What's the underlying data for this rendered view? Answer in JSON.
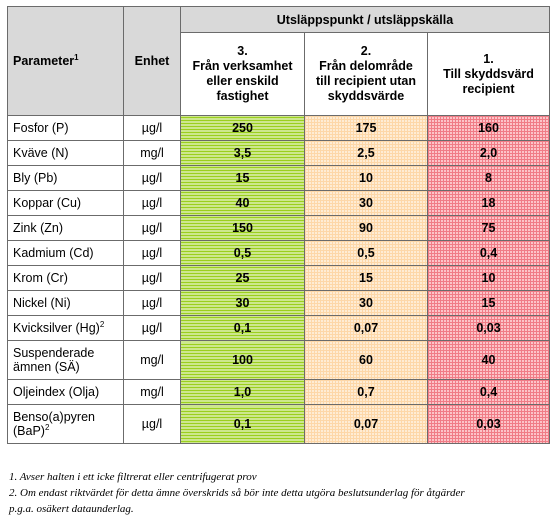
{
  "header": {
    "parameter": "Parameter",
    "parameter_sup": "1",
    "unit": "Enhet",
    "group": "Utsläppspunkt / utsläppskälla",
    "col3": "3.\nFrån verksamhet\neller enskild\nfastighet",
    "col2": "2.\nFrån delområde\ntill recipient utan\nskyddsvärde",
    "col1": "1.\nTill skyddsvärd\nrecipient"
  },
  "rows": [
    {
      "param": "Fosfor (P)",
      "sup": "",
      "unit": "µg/l",
      "v3": "250",
      "v2": "175",
      "v1": "160"
    },
    {
      "param": "Kväve (N)",
      "sup": "",
      "unit": "mg/l",
      "v3": "3,5",
      "v2": "2,5",
      "v1": "2,0"
    },
    {
      "param": "Bly (Pb)",
      "sup": "",
      "unit": "µg/l",
      "v3": "15",
      "v2": "10",
      "v1": "8"
    },
    {
      "param": "Koppar (Cu)",
      "sup": "",
      "unit": "µg/l",
      "v3": "40",
      "v2": "30",
      "v1": "18"
    },
    {
      "param": "Zink (Zn)",
      "sup": "",
      "unit": "µg/l",
      "v3": "150",
      "v2": "90",
      "v1": "75"
    },
    {
      "param": "Kadmium (Cd)",
      "sup": "",
      "unit": "µg/l",
      "v3": "0,5",
      "v2": "0,5",
      "v1": "0,4"
    },
    {
      "param": "Krom (Cr)",
      "sup": "",
      "unit": "µg/l",
      "v3": "25",
      "v2": "15",
      "v1": "10"
    },
    {
      "param": "Nickel (Ni)",
      "sup": "",
      "unit": "µg/l",
      "v3": "30",
      "v2": "30",
      "v1": "15"
    },
    {
      "param": "Kvicksilver (Hg)",
      "sup": "2",
      "unit": "µg/l",
      "v3": "0,1",
      "v2": "0,07",
      "v1": "0,03"
    },
    {
      "param": "Suspenderade\nämnen (SÄ)",
      "sup": "",
      "unit": "mg/l",
      "v3": "100",
      "v2": "60",
      "v1": "40"
    },
    {
      "param": "Oljeindex (Olja)",
      "sup": "",
      "unit": "mg/l",
      "v3": "1,0",
      "v2": "0,7",
      "v1": "0,4"
    },
    {
      "param": "Benso(a)pyren\n(BaP)",
      "sup": "2",
      "unit": "µg/l",
      "v3": "0,1",
      "v2": "0,07",
      "v1": "0,03"
    }
  ],
  "footnotes": [
    "1. Avser halten i ett icke filtrerat eller centrifugerat prov",
    "2. Om endast riktvärdet för detta ämne överskrids så bör inte detta utgöra beslutsunderlag för åtgärder",
    "p.g.a. osäkert dataunderlag."
  ],
  "colors": {
    "green": "#9bcf1e",
    "orange": "#fdd7a8",
    "red": "#f07c86",
    "header_grey": "#d9d9d9"
  }
}
